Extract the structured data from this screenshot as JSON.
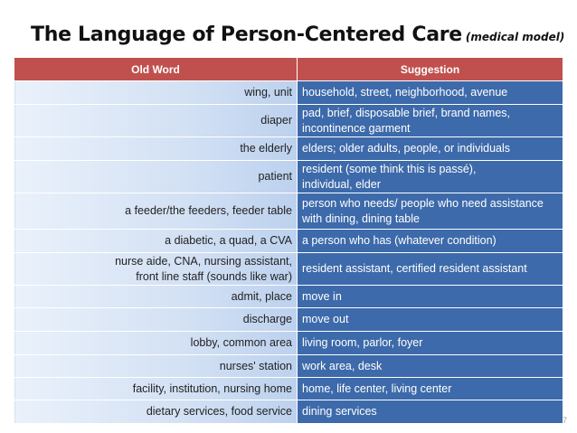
{
  "title": "The Language of Person-Centered Care",
  "subtitle": "(medical model)",
  "headers": {
    "old": "Old Word",
    "new": "Suggestion"
  },
  "rows": [
    {
      "old": [
        "wing, unit"
      ],
      "new": [
        "household, street, neighborhood, avenue"
      ]
    },
    {
      "old": [
        "diaper"
      ],
      "new": [
        "pad, brief, disposable brief, brand names,",
        "incontinence garment"
      ]
    },
    {
      "old": [
        "the elderly"
      ],
      "new": [
        "elders; older adults, people, or individuals"
      ]
    },
    {
      "old": [
        "patient"
      ],
      "new": [
        "resident (some think this is passé),",
        "individual, elder"
      ]
    },
    {
      "old": [
        "a feeder/the feeders, feeder table"
      ],
      "new": [
        "person who needs/ people who need assistance",
        "with dining, dining table"
      ]
    },
    {
      "old": [
        "a diabetic, a quad, a CVA"
      ],
      "new": [
        "a person who has (whatever condition)"
      ]
    },
    {
      "old": [
        "nurse aide, CNA, nursing assistant,",
        "front line staff (sounds like war)"
      ],
      "new": [
        "resident assistant, certified resident assistant"
      ]
    },
    {
      "old": [
        "admit, place"
      ],
      "new": [
        "move in"
      ]
    },
    {
      "old": [
        "discharge"
      ],
      "new": [
        "move out"
      ]
    },
    {
      "old": [
        "lobby, common area"
      ],
      "new": [
        "living room, parlor, foyer"
      ]
    },
    {
      "old": [
        "nurses' station"
      ],
      "new": [
        "work area, desk"
      ]
    },
    {
      "old": [
        "facility, institution, nursing home"
      ],
      "new": [
        "home, life center, living center"
      ]
    },
    {
      "old": [
        "dietary services, food service"
      ],
      "new": [
        "dining services"
      ]
    }
  ],
  "page_number": "7"
}
